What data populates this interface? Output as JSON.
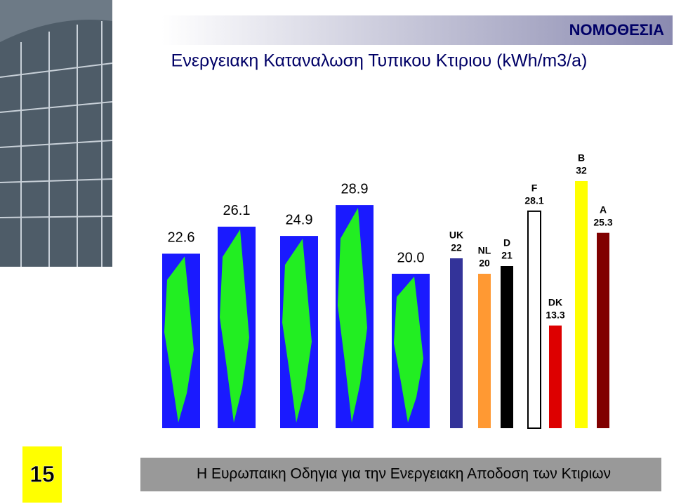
{
  "header": "ΝΟΜΟΘΕΣΙΑ",
  "footer": "Η Ευρωπαικη Οδηγια για την Ενεργειακη Αποδοση των Κτιριων",
  "page_number": "15",
  "chart_data": {
    "type": "bar",
    "title": "Ενεργειακη Καταναλωση Τυπικου Κτιριου (kWh/m3/a)",
    "categories": [
      null,
      null,
      null,
      null,
      null,
      "UK",
      "NL",
      "D",
      "F",
      "DK",
      "B",
      "A"
    ],
    "values": [
      22.6,
      26.1,
      24.9,
      28.9,
      20,
      22,
      20,
      21,
      28.1,
      13.3,
      32,
      25.3
    ],
    "value_labels": [
      "22.6",
      "26.1",
      "24.9",
      "28.9",
      "20.0",
      "22",
      "20",
      "21",
      "28.1",
      "13.3",
      "32",
      "25.3"
    ],
    "colors": [
      "#1a1aff",
      "#1a1aff",
      "#1a1aff",
      "#1a1aff",
      "#1a1aff",
      "#333399",
      "#ff9933",
      "#000000",
      "#ffffff",
      "#dd0000",
      "#ffff00",
      "#800000"
    ]
  }
}
